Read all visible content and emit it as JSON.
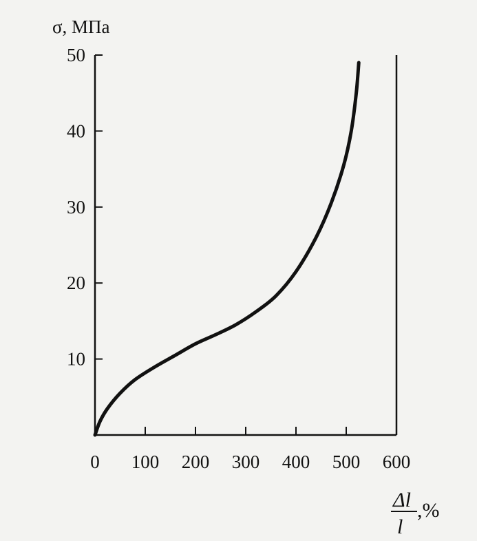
{
  "chart_data": {
    "type": "line",
    "ylabel": "σ, МПа",
    "xlabel": {
      "numerator": "Δl",
      "denominator": "l",
      "unit": ",%"
    },
    "xlim": [
      0,
      600
    ],
    "ylim": [
      0,
      50
    ],
    "xticks": [
      0,
      100,
      200,
      300,
      400,
      500,
      600
    ],
    "yticks": [
      10,
      20,
      30,
      40,
      50
    ],
    "xtick_labels": [
      "0",
      "100",
      "200",
      "300",
      "400",
      "500",
      "600"
    ],
    "ytick_labels": [
      "10",
      "20",
      "30",
      "40",
      "50"
    ],
    "grid": false,
    "series": [
      {
        "x": [
          0,
          10,
          25,
          50,
          80,
          120,
          160,
          200,
          240,
          280,
          320,
          360,
          400,
          440,
          470,
          495,
          510,
          520,
          525
        ],
        "y": [
          0,
          1.8,
          3.5,
          5.5,
          7.3,
          9.0,
          10.5,
          12.0,
          13.2,
          14.5,
          16.2,
          18.3,
          21.5,
          26.0,
          30.5,
          35.5,
          40.0,
          45.0,
          49.0
        ]
      }
    ],
    "colors": {
      "line": "#111111",
      "axis": "#111111"
    }
  }
}
